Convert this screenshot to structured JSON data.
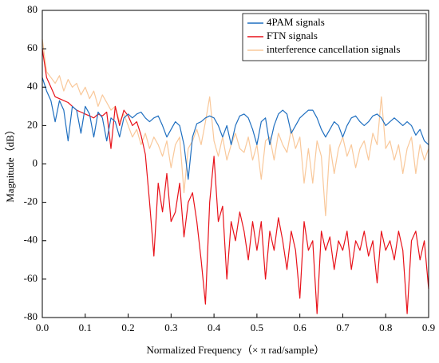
{
  "chart_data": {
    "type": "line",
    "xlabel": "Normalized Frequency（× π rad/sample）",
    "ylabel": "Magnitude（dB）",
    "xlim": [
      0,
      0.9
    ],
    "ylim": [
      -80,
      80
    ],
    "xticks": [
      {
        "value": 0,
        "label": "0.0"
      },
      0.1,
      0.2,
      0.3,
      0.4,
      0.5,
      0.6,
      0.7,
      0.8,
      0.9
    ],
    "yticks": [
      -80,
      -60,
      -40,
      -20,
      0,
      20,
      40,
      60,
      80
    ],
    "legend": "upper right",
    "x": [
      0,
      0.01,
      0.02,
      0.03,
      0.04,
      0.05,
      0.06,
      0.07,
      0.08,
      0.09,
      0.1,
      0.11,
      0.12,
      0.13,
      0.14,
      0.15,
      0.16,
      0.17,
      0.18,
      0.19,
      0.2,
      0.21,
      0.22,
      0.23,
      0.24,
      0.25,
      0.26,
      0.27,
      0.28,
      0.29,
      0.3,
      0.31,
      0.32,
      0.33,
      0.34,
      0.35,
      0.36,
      0.37,
      0.38,
      0.39,
      0.4,
      0.41,
      0.42,
      0.43,
      0.44,
      0.45,
      0.46,
      0.47,
      0.48,
      0.49,
      0.5,
      0.51,
      0.52,
      0.53,
      0.54,
      0.55,
      0.56,
      0.57,
      0.58,
      0.59,
      0.6,
      0.61,
      0.62,
      0.63,
      0.64,
      0.65,
      0.66,
      0.67,
      0.68,
      0.69,
      0.7,
      0.71,
      0.72,
      0.73,
      0.74,
      0.75,
      0.76,
      0.77,
      0.78,
      0.79,
      0.8,
      0.81,
      0.82,
      0.83,
      0.84,
      0.85,
      0.86,
      0.87,
      0.88,
      0.89,
      0.9
    ],
    "series": [
      {
        "name": "4PAM signals",
        "color": "#1f6fc0",
        "values": [
          45,
          38,
          33,
          22,
          33,
          28,
          12,
          30,
          28,
          16,
          30,
          26,
          14,
          27,
          24,
          12,
          24,
          22,
          14,
          24,
          26,
          24,
          26,
          27,
          24,
          22,
          24,
          25,
          20,
          14,
          18,
          22,
          20,
          10,
          -8,
          14,
          21,
          22,
          24,
          25,
          24,
          20,
          14,
          20,
          10,
          20,
          25,
          26,
          24,
          18,
          10,
          22,
          24,
          10,
          20,
          26,
          28,
          26,
          16,
          20,
          24,
          26,
          28,
          28,
          24,
          18,
          14,
          18,
          22,
          20,
          14,
          20,
          24,
          25,
          22,
          20,
          22,
          25,
          26,
          24,
          20,
          22,
          24,
          22,
          20,
          22,
          20,
          15,
          18,
          12,
          10
        ]
      },
      {
        "name": "FTN signals",
        "color": "#e8121a",
        "values": [
          60,
          45,
          40,
          35,
          34,
          33,
          32,
          30,
          28,
          27,
          26,
          25,
          24,
          26,
          25,
          27,
          8,
          30,
          20,
          28,
          25,
          20,
          22,
          15,
          5,
          -20,
          -48,
          -10,
          -25,
          -5,
          -30,
          -25,
          -10,
          -38,
          -20,
          -15,
          -30,
          -50,
          -73,
          -20,
          4,
          -30,
          -22,
          -60,
          -30,
          -40,
          -25,
          -35,
          -50,
          -30,
          -45,
          -30,
          -60,
          -35,
          -45,
          -28,
          -40,
          -55,
          -35,
          -45,
          -70,
          -30,
          -45,
          -40,
          -78,
          -35,
          -45,
          -38,
          -55,
          -40,
          -45,
          -35,
          -55,
          -40,
          -45,
          -35,
          -48,
          -40,
          -62,
          -35,
          -45,
          -40,
          -50,
          -35,
          -45,
          -78,
          -40,
          -35,
          -50,
          -40,
          -65
        ]
      },
      {
        "name": "interference cancellation signals",
        "color": "#f9c89a",
        "values": [
          65,
          48,
          45,
          42,
          46,
          38,
          44,
          40,
          42,
          36,
          40,
          34,
          38,
          30,
          36,
          32,
          28,
          30,
          22,
          26,
          20,
          14,
          18,
          10,
          16,
          8,
          14,
          10,
          4,
          12,
          -2,
          10,
          14,
          -15,
          8,
          12,
          18,
          10,
          22,
          35,
          12,
          4,
          14,
          2,
          10,
          16,
          8,
          6,
          14,
          2,
          10,
          -8,
          12,
          14,
          2,
          16,
          10,
          6,
          18,
          8,
          14,
          -10,
          8,
          -10,
          12,
          4,
          -27,
          10,
          -5,
          8,
          14,
          4,
          10,
          -2,
          8,
          12,
          2,
          16,
          10,
          35,
          8,
          12,
          2,
          10,
          -5,
          8,
          14,
          -5,
          10,
          2,
          8
        ]
      }
    ]
  }
}
